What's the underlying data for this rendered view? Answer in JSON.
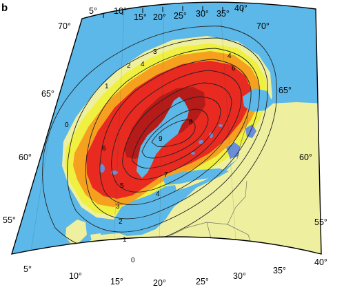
{
  "figure": {
    "panel_letter": "b"
  },
  "map": {
    "colors": {
      "sea": "#5cb8e8",
      "land": "#eef0a0",
      "yellow": "#f0f040",
      "orange": "#f6a020",
      "red": "#e82a20",
      "dark_red": "#8a1010",
      "lakes": "#6a8fd8"
    },
    "longitude_labels_top": [
      "5°",
      "10°",
      "15°",
      "20°",
      "25°",
      "30°",
      "35°",
      "40°"
    ],
    "longitude_labels_bottom": [
      "5°",
      "10°",
      "15°",
      "20°",
      "25°",
      "30°",
      "35°",
      "40°"
    ],
    "latitude_labels_left": [
      "70°",
      "65°",
      "60°",
      "55°"
    ],
    "latitude_labels_right": [
      "70°",
      "65°",
      "60°",
      "55°"
    ],
    "contour_labels": [
      "0",
      "1",
      "2",
      "3",
      "4",
      "5",
      "6",
      "7",
      "8",
      "9"
    ]
  }
}
